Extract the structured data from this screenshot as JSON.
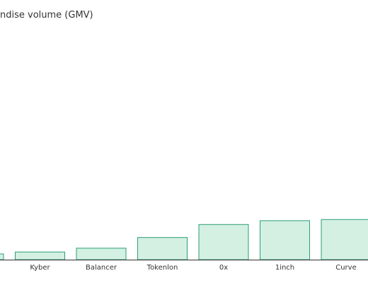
{
  "chart_data": {
    "type": "bar",
    "title": "ndise volume (GMV)",
    "xlabel": "",
    "ylabel": "",
    "categories": [
      "",
      "Kyber",
      "Balancer",
      "Tokenlon",
      "0x",
      "1inch",
      "Curve"
    ],
    "values": [
      1.5,
      2.0,
      3.0,
      5.8,
      9.2,
      10.2,
      10.5
    ],
    "ylim": [
      0,
      60
    ],
    "grid": false,
    "colors": {
      "bar_fill": "#d3f0e3",
      "bar_stroke": "#2e9e73",
      "axis": "#333333",
      "label": "#333333"
    }
  }
}
